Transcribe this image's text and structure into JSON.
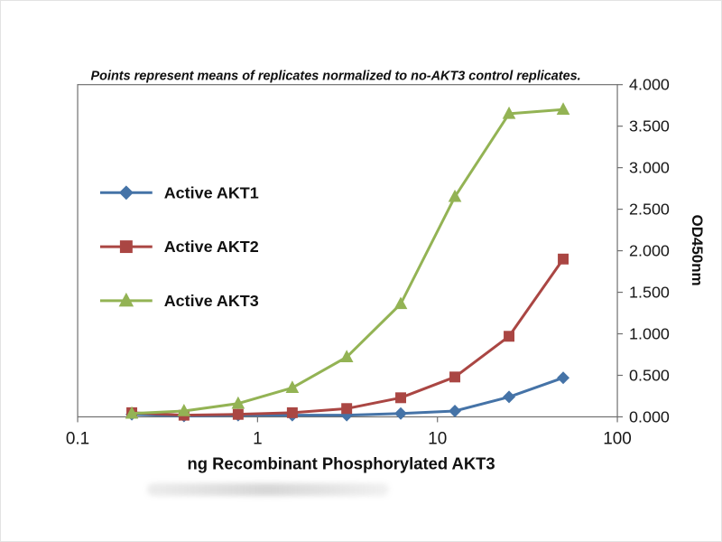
{
  "chart_data": {
    "type": "line",
    "title": "Points represent means of replicates normalized to no-AKT3 control replicates.",
    "xlabel": "ng Recombinant Phosphorylated AKT3",
    "ylabel": "OD450nm",
    "x_scale": "log10",
    "xlim": [
      0.1,
      100
    ],
    "ylim": [
      0,
      4
    ],
    "grid": false,
    "legend_position": "inside-left",
    "x_ticks": [
      0.1,
      1,
      10,
      100
    ],
    "x_tick_labels": [
      "0.1",
      "1",
      "10",
      "100"
    ],
    "y_ticks": [
      0,
      0.5,
      1,
      1.5,
      2,
      2.5,
      3,
      3.5,
      4
    ],
    "y_tick_labels": [
      "0.000",
      "0.500",
      "1.000",
      "1.500",
      "2.000",
      "2.500",
      "3.000",
      "3.500",
      "4.000"
    ],
    "x": [
      0.2,
      0.39,
      0.78,
      1.56,
      3.13,
      6.25,
      12.5,
      25,
      50
    ],
    "series": [
      {
        "name": "Active AKT1",
        "color": "#4573a7",
        "marker": "diamond",
        "values": [
          0.03,
          0.01,
          0.02,
          0.02,
          0.02,
          0.04,
          0.07,
          0.24,
          0.47
        ]
      },
      {
        "name": "Active AKT2",
        "color": "#aa4643",
        "marker": "square",
        "values": [
          0.05,
          0.02,
          0.03,
          0.05,
          0.1,
          0.23,
          0.48,
          0.97,
          1.9
        ]
      },
      {
        "name": "Active AKT3",
        "color": "#93b354",
        "marker": "triangle",
        "values": [
          0.04,
          0.07,
          0.16,
          0.35,
          0.72,
          1.36,
          2.65,
          3.65,
          3.7
        ]
      }
    ]
  }
}
